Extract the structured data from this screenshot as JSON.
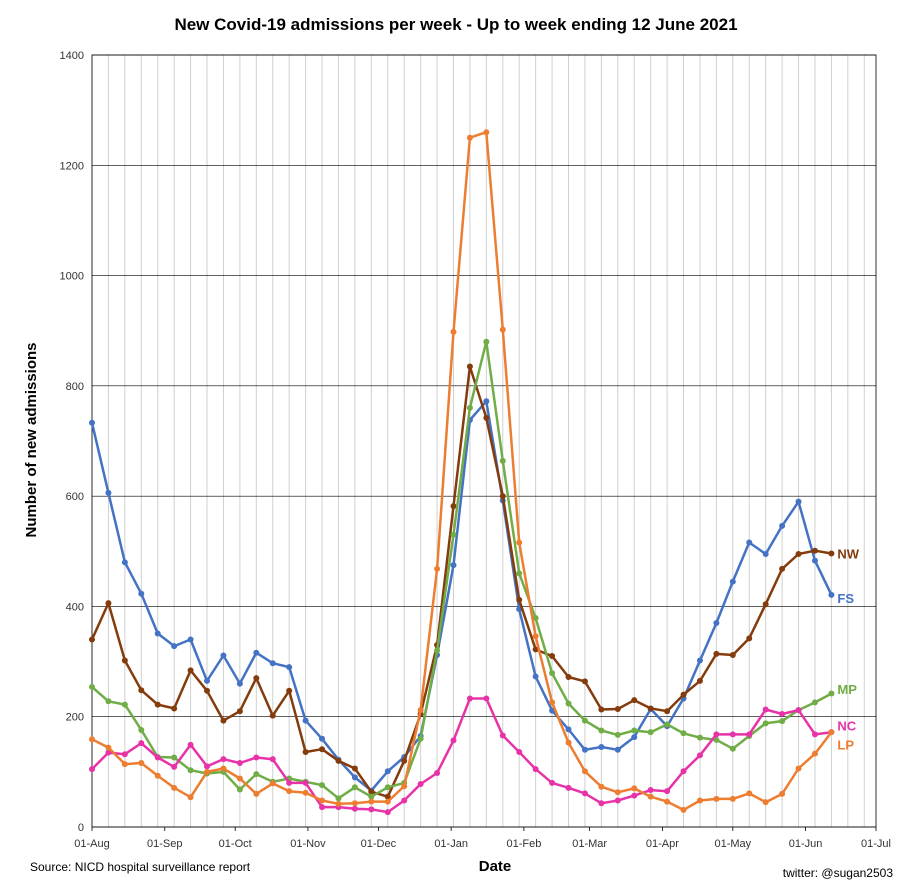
{
  "chart_data": {
    "type": "line",
    "title": "New Covid-19 admissions  per week - Up to week ending 12 June 2021",
    "xlabel": "Date",
    "ylabel": "Number of new admissions",
    "ylim": [
      0,
      1400
    ],
    "yticks": [
      0,
      200,
      400,
      600,
      800,
      1000,
      1200,
      1400
    ],
    "xrange_days": [
      0,
      334
    ],
    "xticks": [
      {
        "label": "01-Aug",
        "day": 0
      },
      {
        "label": "01-Sep",
        "day": 31
      },
      {
        "label": "01-Oct",
        "day": 61
      },
      {
        "label": "01-Nov",
        "day": 92
      },
      {
        "label": "01-Dec",
        "day": 122
      },
      {
        "label": "01-Jan",
        "day": 153
      },
      {
        "label": "01-Feb",
        "day": 184
      },
      {
        "label": "01-Mar",
        "day": 212
      },
      {
        "label": "01-Apr",
        "day": 243
      },
      {
        "label": "01-May",
        "day": 273
      },
      {
        "label": "01-Jun",
        "day": 304
      },
      {
        "label": "01-Jul",
        "day": 334
      }
    ],
    "x_weeks_start_day": 0,
    "x_week_step_days": 7,
    "source": "Source: NICD hospital surveillance report",
    "credit": "twitter: @sugan2503",
    "series": [
      {
        "name": "FS",
        "color": "#4472c4",
        "values": [
          733,
          606,
          480,
          423,
          351,
          328,
          340,
          265,
          311,
          260,
          316,
          297,
          290,
          193,
          160,
          122,
          90,
          66,
          101,
          127,
          165,
          312,
          475,
          738,
          772,
          592,
          395,
          273,
          211,
          177,
          140,
          145,
          140,
          163,
          214,
          183,
          233,
          302,
          370,
          445,
          516,
          495,
          546,
          590,
          483,
          421
        ]
      },
      {
        "name": "NW",
        "color": "#843c0c",
        "values": [
          340,
          406,
          302,
          248,
          222,
          215,
          284,
          247,
          193,
          210,
          270,
          202,
          247,
          136,
          141,
          120,
          106,
          64,
          55,
          120,
          205,
          330,
          582,
          835,
          742,
          600,
          412,
          322,
          310,
          272,
          264,
          213,
          214,
          230,
          215,
          210,
          240,
          265,
          314,
          312,
          342,
          404,
          468,
          495,
          501,
          496
        ]
      },
      {
        "name": "MP",
        "color": "#70ad47",
        "values": [
          254,
          228,
          222,
          176,
          127,
          126,
          103,
          97,
          100,
          68,
          96,
          82,
          88,
          82,
          76,
          52,
          72,
          55,
          72,
          80,
          160,
          320,
          530,
          760,
          880,
          664,
          460,
          379,
          279,
          224,
          193,
          175,
          167,
          175,
          172,
          186,
          170,
          162,
          158,
          142,
          165,
          188,
          192,
          212,
          226,
          242
        ]
      },
      {
        "name": "NC",
        "color": "#e833a8",
        "values": [
          105,
          135,
          132,
          152,
          126,
          109,
          149,
          110,
          123,
          116,
          126,
          123,
          80,
          80,
          36,
          36,
          33,
          32,
          27,
          48,
          78,
          98,
          157,
          233,
          233,
          166,
          136,
          105,
          80,
          71,
          61,
          43,
          48,
          57,
          67,
          65,
          101,
          130,
          168,
          168,
          168,
          213,
          205,
          212,
          168,
          172
        ]
      },
      {
        "name": "LP",
        "color": "#ed7d31",
        "values": [
          159,
          144,
          114,
          116,
          93,
          71,
          54,
          100,
          106,
          88,
          60,
          79,
          65,
          62,
          48,
          42,
          43,
          46,
          46,
          74,
          212,
          468,
          898,
          1250,
          1260,
          902,
          516,
          346,
          226,
          153,
          101,
          73,
          63,
          70,
          55,
          46,
          31,
          48,
          51,
          51,
          61,
          45,
          60,
          106,
          133,
          172
        ]
      }
    ],
    "label_y": {
      "NW": 496,
      "FS": 415,
      "MP": 250,
      "NC": 184,
      "LP": 150
    }
  }
}
